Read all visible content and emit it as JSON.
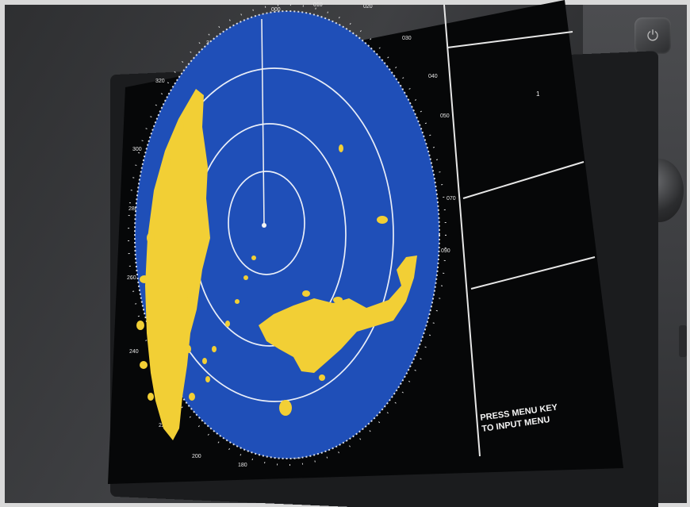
{
  "left_header": {
    "lines": [
      "",
      ""
    ]
  },
  "top_right": {
    "lines": [
      "",
      "",
      "",
      ""
    ]
  },
  "target_panel": {
    "lines": [
      "",
      "",
      "",
      "",
      ""
    ],
    "target_number": "1"
  },
  "data_list": {
    "lines": [
      "",
      "",
      "",
      "",
      ""
    ]
  },
  "prompt": {
    "line1": "PRESS MENU KEY",
    "line2": "TO INPUT MENU"
  },
  "controls": {
    "power_icon_glyph": "⏻"
  },
  "colors": {
    "radar_background": "#1f4fb8",
    "echo": "#f2cf35",
    "range_ring": "#e9eef8",
    "screen_black": "#060708",
    "text": "#f2f2f2"
  },
  "icons": [
    "power-icon"
  ]
}
